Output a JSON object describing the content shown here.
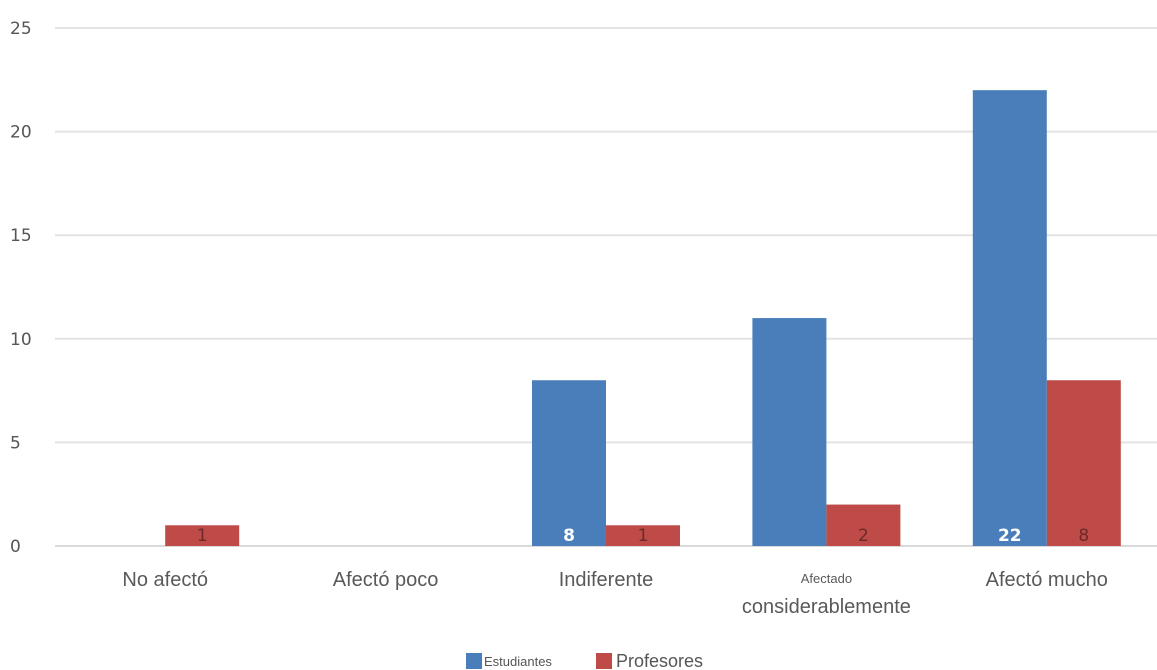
{
  "chart_data": {
    "type": "bar",
    "title": "",
    "xlabel": "",
    "ylabel": "",
    "categories": [
      "No afectó",
      "Afectó poco",
      "Indiferente",
      "Afectado considerablemente",
      "Afectó mucho"
    ],
    "category_lines": [
      [
        "No afectó"
      ],
      [
        "Afectó poco"
      ],
      [
        "Indiferente"
      ],
      [
        "Afectado",
        "considerablemente"
      ],
      [
        "Afectó mucho"
      ]
    ],
    "series": [
      {
        "name": "Estudiantes",
        "color": "#4a7ebb",
        "values": [
          0,
          0,
          8,
          11,
          22
        ],
        "labels": [
          "",
          "",
          "8",
          "",
          "22"
        ],
        "label_color": "#ffffff"
      },
      {
        "name": "Profesores",
        "color": "#be4b48",
        "values": [
          1,
          0,
          1,
          2,
          8
        ],
        "labels": [
          "1",
          "",
          "1",
          "2",
          "8"
        ],
        "label_color": "#6b2a28"
      }
    ],
    "ylim": [
      0,
      25
    ],
    "yticks": [
      0,
      5,
      10,
      15,
      20,
      25
    ],
    "grid": true,
    "legend": "bottom"
  }
}
